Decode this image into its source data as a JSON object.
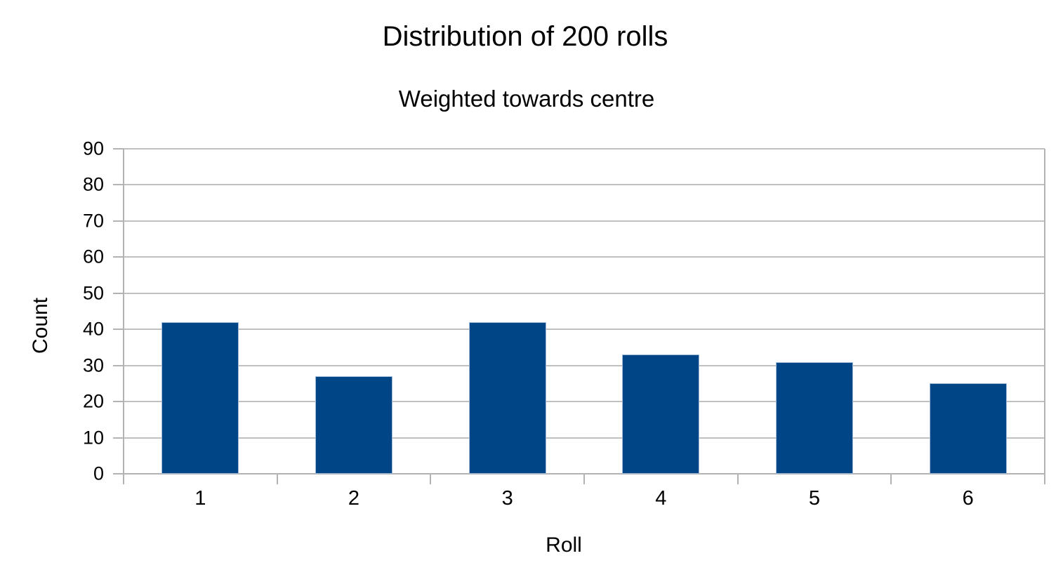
{
  "chart_data": {
    "type": "bar",
    "title": "Distribution of 200 rolls",
    "subtitle": "Weighted towards centre",
    "xlabel": "Roll",
    "ylabel": "Count",
    "categories": [
      "1",
      "2",
      "3",
      "4",
      "5",
      "6"
    ],
    "values": [
      42,
      27,
      42,
      33,
      31,
      25
    ],
    "ylim": [
      0,
      90
    ],
    "ytick_step": 10,
    "yticks": [
      0,
      10,
      20,
      30,
      40,
      50,
      60,
      70,
      80,
      90
    ],
    "grid": "horizontal",
    "legend": "none",
    "colors": {
      "bar_fill": "#004586",
      "bar_border": "#9fb9d8",
      "gridline": "#c0c0c0",
      "axis": "#b3b3b3",
      "text": "#000000",
      "background": "#ffffff"
    }
  }
}
